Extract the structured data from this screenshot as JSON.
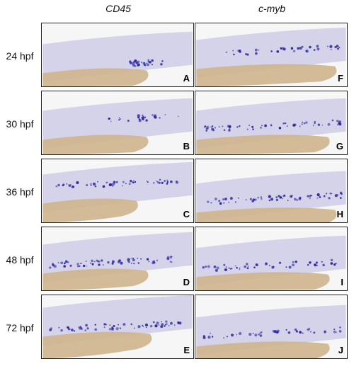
{
  "columns": [
    "CD45",
    "c-myb"
  ],
  "rows": [
    "24 hpf",
    "30 hpf",
    "36 hpf",
    "48 hpf",
    "72 hpf"
  ],
  "panels": {
    "cd45": [
      "A",
      "B",
      "C",
      "D",
      "E"
    ],
    "cmyb": [
      "F",
      "G",
      "H",
      "I",
      "J"
    ]
  },
  "colors": {
    "stain": "#2c2a9c",
    "tissue_top": "#cfcce8",
    "tissue_bottom": "#d8c6a3",
    "yolk": "#cfb58d",
    "background": "#f6f6f6"
  }
}
